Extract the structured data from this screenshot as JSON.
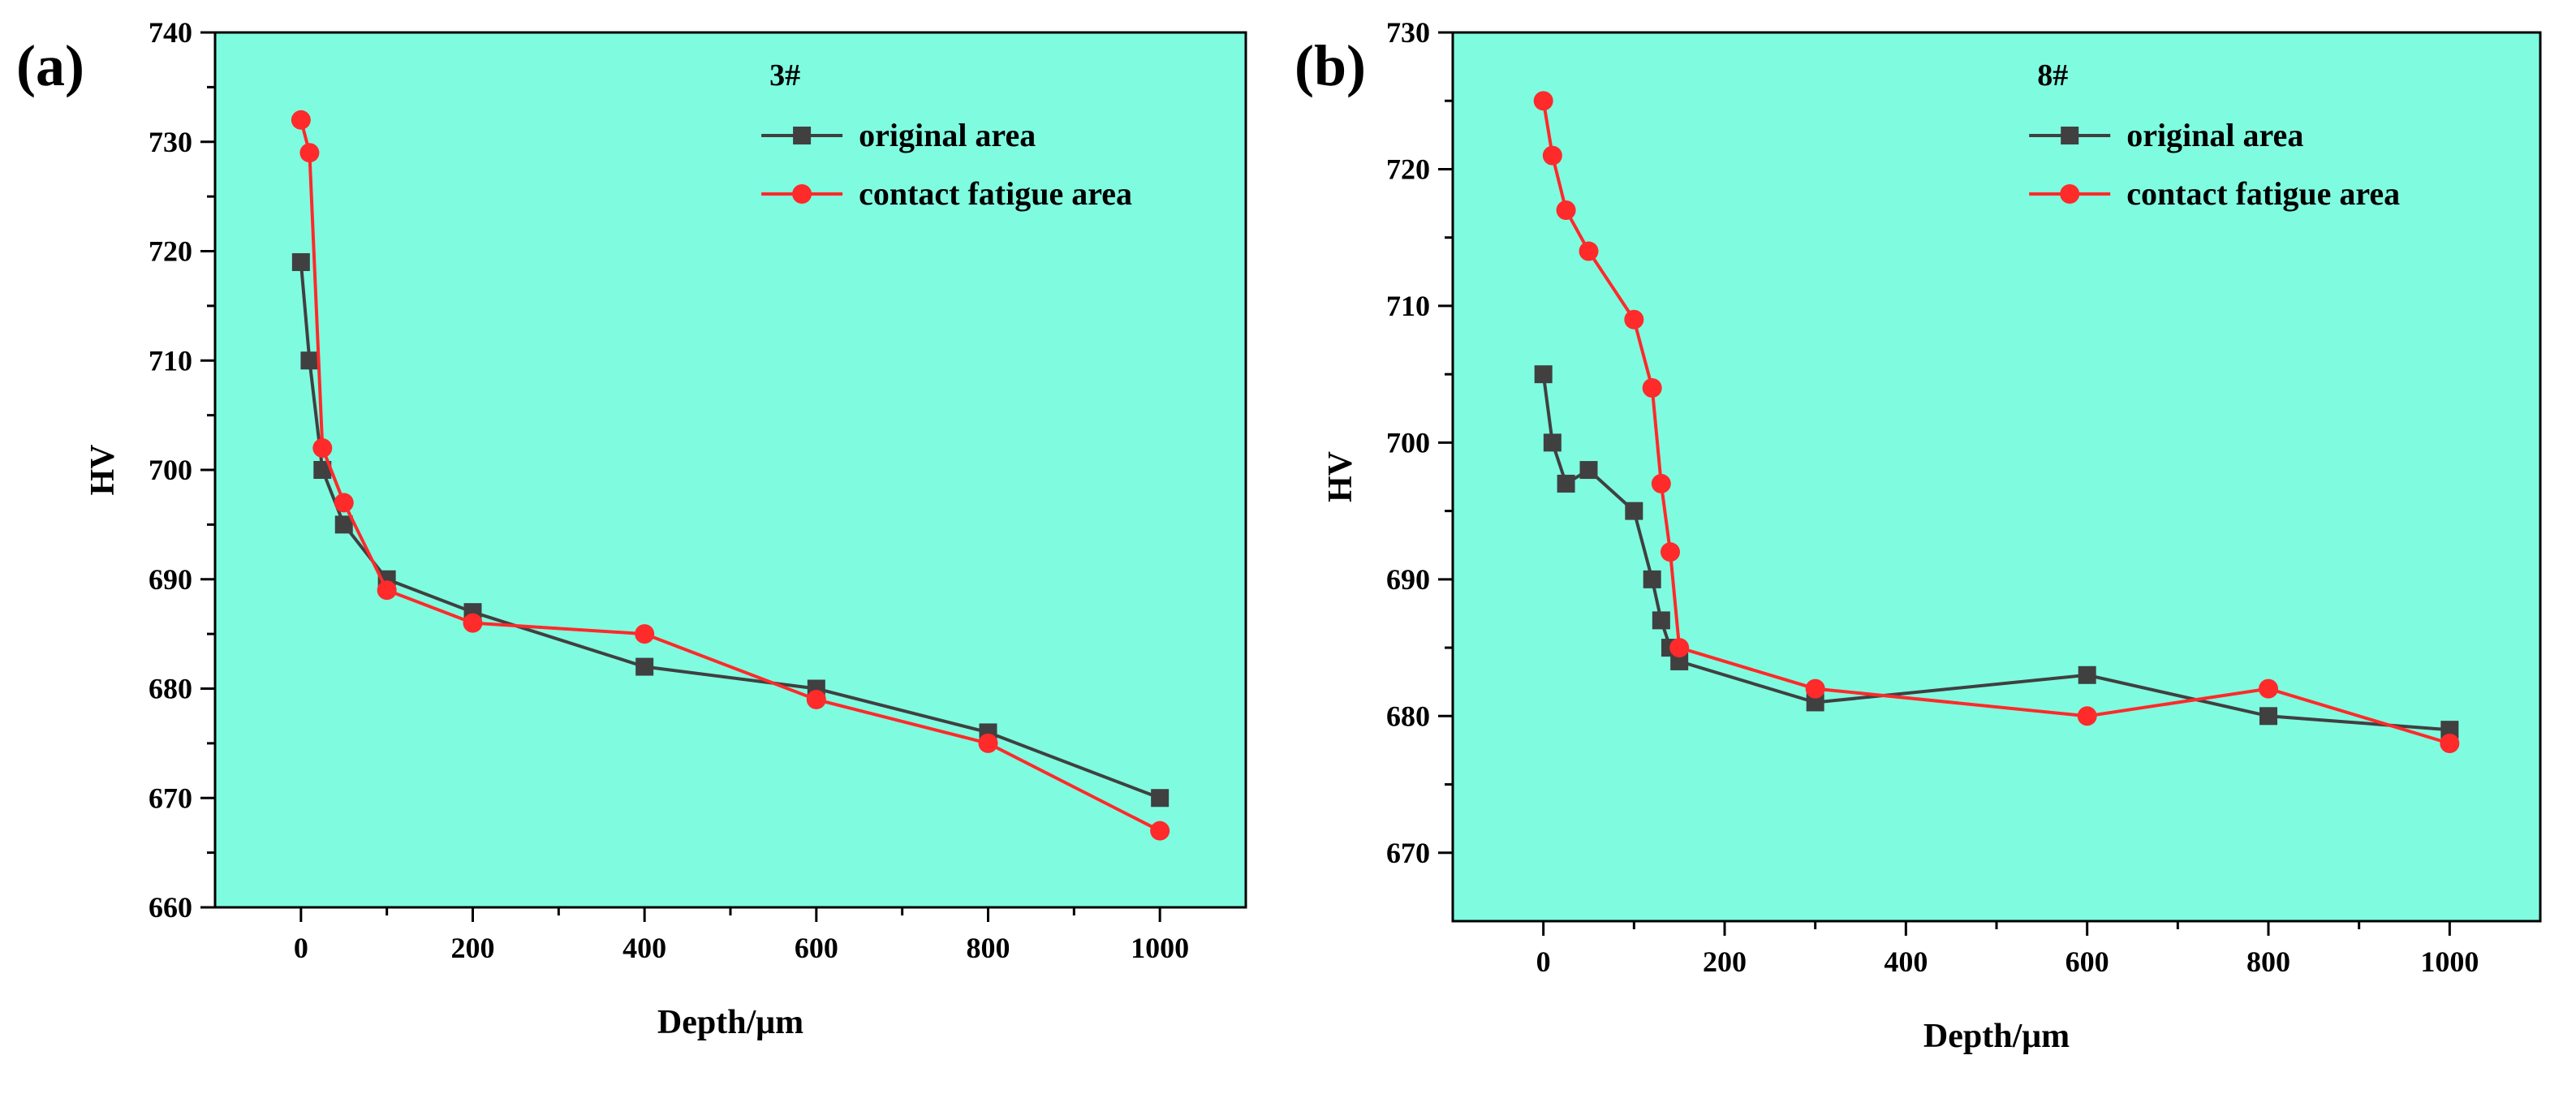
{
  "colors": {
    "plot_background": "#7ffce0",
    "original_series": "#404040",
    "fatigue_series": "#ff2a2a"
  },
  "chart_data": [
    {
      "type": "line",
      "panel_label": "(a)",
      "legend_title": "3#",
      "xlabel": "Depth/μm",
      "ylabel": "HV",
      "xlim": [
        -100,
        1100
      ],
      "ylim": [
        660,
        740
      ],
      "xticks": [
        0,
        200,
        400,
        600,
        800,
        1000
      ],
      "yticks": [
        660,
        670,
        680,
        690,
        700,
        710,
        720,
        730,
        740
      ],
      "legend_position": "top-right",
      "series": [
        {
          "name": "original area",
          "marker": "square",
          "color": "#404040",
          "x": [
            0,
            10,
            25,
            50,
            100,
            200,
            400,
            600,
            800,
            1000
          ],
          "y": [
            719,
            710,
            700,
            695,
            690,
            687,
            682,
            680,
            676,
            670
          ]
        },
        {
          "name": "contact fatigue area",
          "marker": "circle",
          "color": "#ff2a2a",
          "x": [
            0,
            10,
            25,
            50,
            100,
            200,
            400,
            600,
            800,
            1000
          ],
          "y": [
            732,
            729,
            702,
            697,
            689,
            686,
            685,
            679,
            675,
            667
          ]
        }
      ]
    },
    {
      "type": "line",
      "panel_label": "(b)",
      "legend_title": "8#",
      "xlabel": "Depth/μm",
      "ylabel": "HV",
      "xlim": [
        -100,
        1100
      ],
      "ylim": [
        665,
        730
      ],
      "xticks": [
        0,
        200,
        400,
        600,
        800,
        1000
      ],
      "yticks": [
        670,
        680,
        690,
        700,
        710,
        720,
        730
      ],
      "legend_position": "top-right",
      "series": [
        {
          "name": "original area",
          "marker": "square",
          "color": "#404040",
          "x": [
            0,
            10,
            25,
            50,
            100,
            120,
            130,
            140,
            150,
            300,
            600,
            800,
            1000
          ],
          "y": [
            705,
            700,
            697,
            698,
            695,
            690,
            687,
            685,
            684,
            681,
            683,
            680,
            679
          ]
        },
        {
          "name": "contact fatigue area",
          "marker": "circle",
          "color": "#ff2a2a",
          "x": [
            0,
            10,
            25,
            50,
            100,
            120,
            130,
            140,
            150,
            300,
            600,
            800,
            1000
          ],
          "y": [
            725,
            721,
            717,
            714,
            709,
            704,
            697,
            692,
            685,
            682,
            680,
            682,
            678
          ]
        }
      ]
    }
  ]
}
